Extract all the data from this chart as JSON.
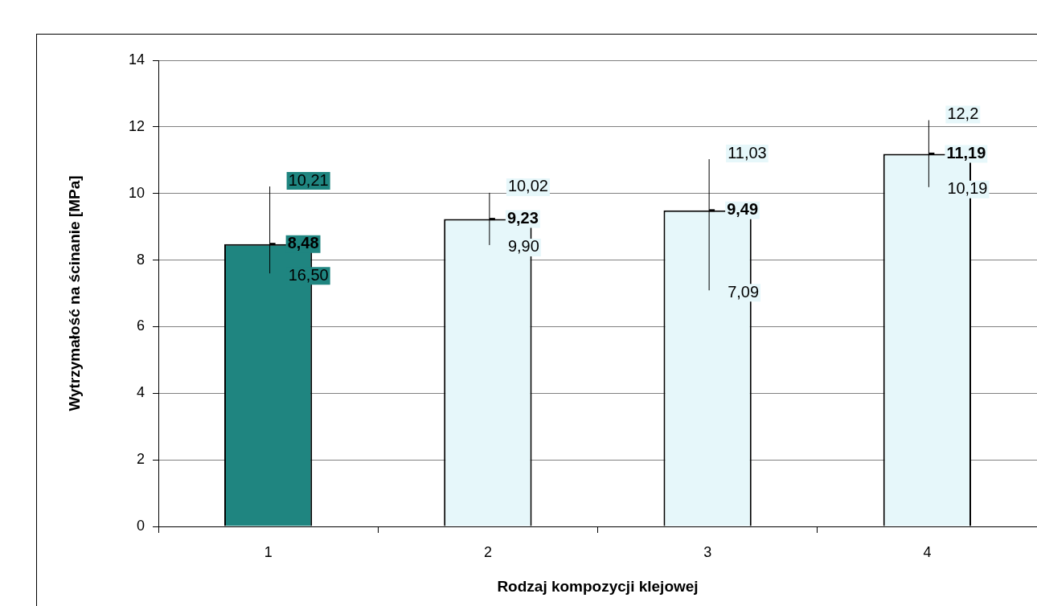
{
  "chart_data": {
    "type": "bar",
    "xlabel": "Rodzaj kompozycji klejowej",
    "ylabel": "Wytrzymałość na ścinanie [MPa]",
    "categories": [
      "1",
      "2",
      "3",
      "4"
    ],
    "values": [
      8.48,
      9.23,
      9.49,
      11.19
    ],
    "colors": [
      "#1f8580",
      "#e6f7fa",
      "#e6f7fa",
      "#e6f7fa"
    ],
    "value_labels": [
      "8,48",
      "9,23",
      "9,49",
      "11,19"
    ],
    "errors": [
      [
        7.6,
        10.21
      ],
      [
        8.45,
        10.02
      ],
      [
        7.09,
        11.03
      ],
      [
        10.19,
        12.2
      ]
    ],
    "ylim": [
      0,
      14
    ],
    "yticks": [
      0,
      2,
      4,
      6,
      8,
      10,
      12,
      14
    ],
    "grid": "y",
    "legend": false,
    "annotations": [
      {
        "text": "10,21",
        "x": "1",
        "y": 10.21
      },
      {
        "text": "16,50",
        "x": "1",
        "y": 7.6
      },
      {
        "text": "10,02",
        "x": "2",
        "y": 10.02
      },
      {
        "text": "9,90",
        "x": "2",
        "y": 8.45
      },
      {
        "text": "11,03",
        "x": "3",
        "y": 11.03
      },
      {
        "text": "7,09",
        "x": "3",
        "y": 7.09
      },
      {
        "text": "12,2",
        "x": "4",
        "y": 12.2
      },
      {
        "text": "10,19",
        "x": "4",
        "y": 10.19
      }
    ]
  }
}
